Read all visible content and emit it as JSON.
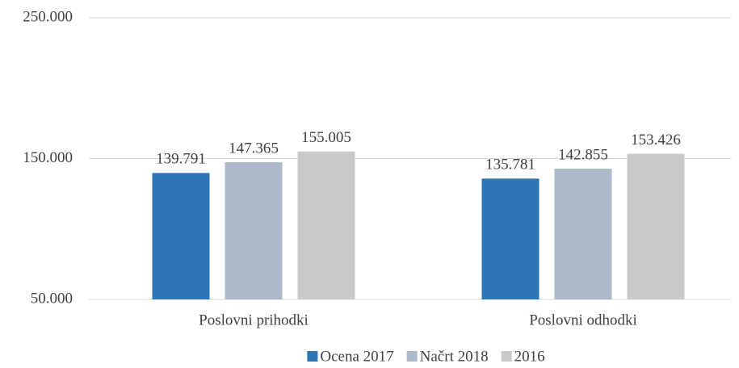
{
  "chart_data": {
    "type": "bar",
    "categories": [
      "Poslovni prihodki",
      "Poslovni odhodki"
    ],
    "series": [
      {
        "name": "Ocena 2017",
        "color": "#2e75b6",
        "values": [
          139791,
          135781
        ],
        "value_labels": [
          "139.791",
          "135.781"
        ]
      },
      {
        "name": "Načrt 2018",
        "color": "#adb9ca",
        "values": [
          147365,
          142855
        ],
        "value_labels": [
          "147.365",
          "142.855"
        ]
      },
      {
        "name": "2016",
        "color": "#c9c9c9",
        "values": [
          155005,
          153426
        ],
        "value_labels": [
          "155.005",
          "153.426"
        ]
      }
    ],
    "ylim": [
      50000,
      250000
    ],
    "yticks": [
      {
        "value": 50000,
        "label": "50.000"
      },
      {
        "value": 150000,
        "label": "150.000"
      },
      {
        "value": 250000,
        "label": "250.000"
      }
    ],
    "grid": true,
    "legend": "bottom"
  }
}
